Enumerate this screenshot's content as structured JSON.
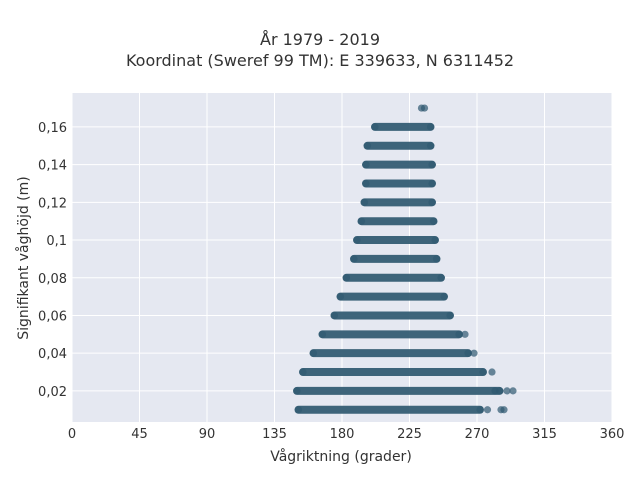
{
  "chart_data": {
    "type": "scatter",
    "title": "År 1979 - 2019",
    "subtitle": "Koordinat (Sweref 99 TM): E 339633, N 6311452",
    "xlabel": "Vågriktning (grader)",
    "ylabel": "Signifikant våghöjd (m)",
    "xlim": [
      0,
      360
    ],
    "ylim": [
      0.0035,
      0.178
    ],
    "xticks": [
      0,
      45,
      90,
      135,
      180,
      225,
      270,
      315,
      360
    ],
    "xtick_labels": [
      "0",
      "45",
      "90",
      "135",
      "180",
      "225",
      "270",
      "315",
      "360"
    ],
    "yticks": [
      0.02,
      0.04,
      0.06,
      0.08,
      0.1,
      0.12,
      0.14,
      0.16
    ],
    "ytick_labels": [
      "0,02",
      "0,04",
      "0,06",
      "0,08",
      "0,1",
      "0,12",
      "0,14",
      "0,16"
    ],
    "grid": true,
    "background": "#e5e8f1",
    "marker_color": "#2f5870",
    "bands": [
      {
        "y": 0.01,
        "x_min": 151,
        "x_max": 272
      },
      {
        "y": 0.02,
        "x_min": 150,
        "x_max": 285
      },
      {
        "y": 0.03,
        "x_min": 154,
        "x_max": 274
      },
      {
        "y": 0.04,
        "x_min": 161,
        "x_max": 264
      },
      {
        "y": 0.05,
        "x_min": 167,
        "x_max": 258
      },
      {
        "y": 0.06,
        "x_min": 175,
        "x_max": 252
      },
      {
        "y": 0.07,
        "x_min": 179,
        "x_max": 248
      },
      {
        "y": 0.08,
        "x_min": 183,
        "x_max": 246
      },
      {
        "y": 0.09,
        "x_min": 188,
        "x_max": 243
      },
      {
        "y": 0.1,
        "x_min": 190,
        "x_max": 242
      },
      {
        "y": 0.11,
        "x_min": 193,
        "x_max": 241
      },
      {
        "y": 0.12,
        "x_min": 195,
        "x_max": 240
      },
      {
        "y": 0.13,
        "x_min": 196,
        "x_max": 240
      },
      {
        "y": 0.14,
        "x_min": 196,
        "x_max": 240
      },
      {
        "y": 0.15,
        "x_min": 197,
        "x_max": 239
      },
      {
        "y": 0.16,
        "x_min": 202,
        "x_max": 239
      }
    ],
    "outliers": [
      {
        "x": 233,
        "y": 0.17
      },
      {
        "x": 235,
        "y": 0.17
      },
      {
        "x": 277,
        "y": 0.01
      },
      {
        "x": 286,
        "y": 0.01
      },
      {
        "x": 288,
        "y": 0.01
      },
      {
        "x": 282,
        "y": 0.02
      },
      {
        "x": 290,
        "y": 0.02
      },
      {
        "x": 294,
        "y": 0.02
      },
      {
        "x": 280,
        "y": 0.03
      },
      {
        "x": 268,
        "y": 0.04
      },
      {
        "x": 262,
        "y": 0.05
      }
    ]
  }
}
